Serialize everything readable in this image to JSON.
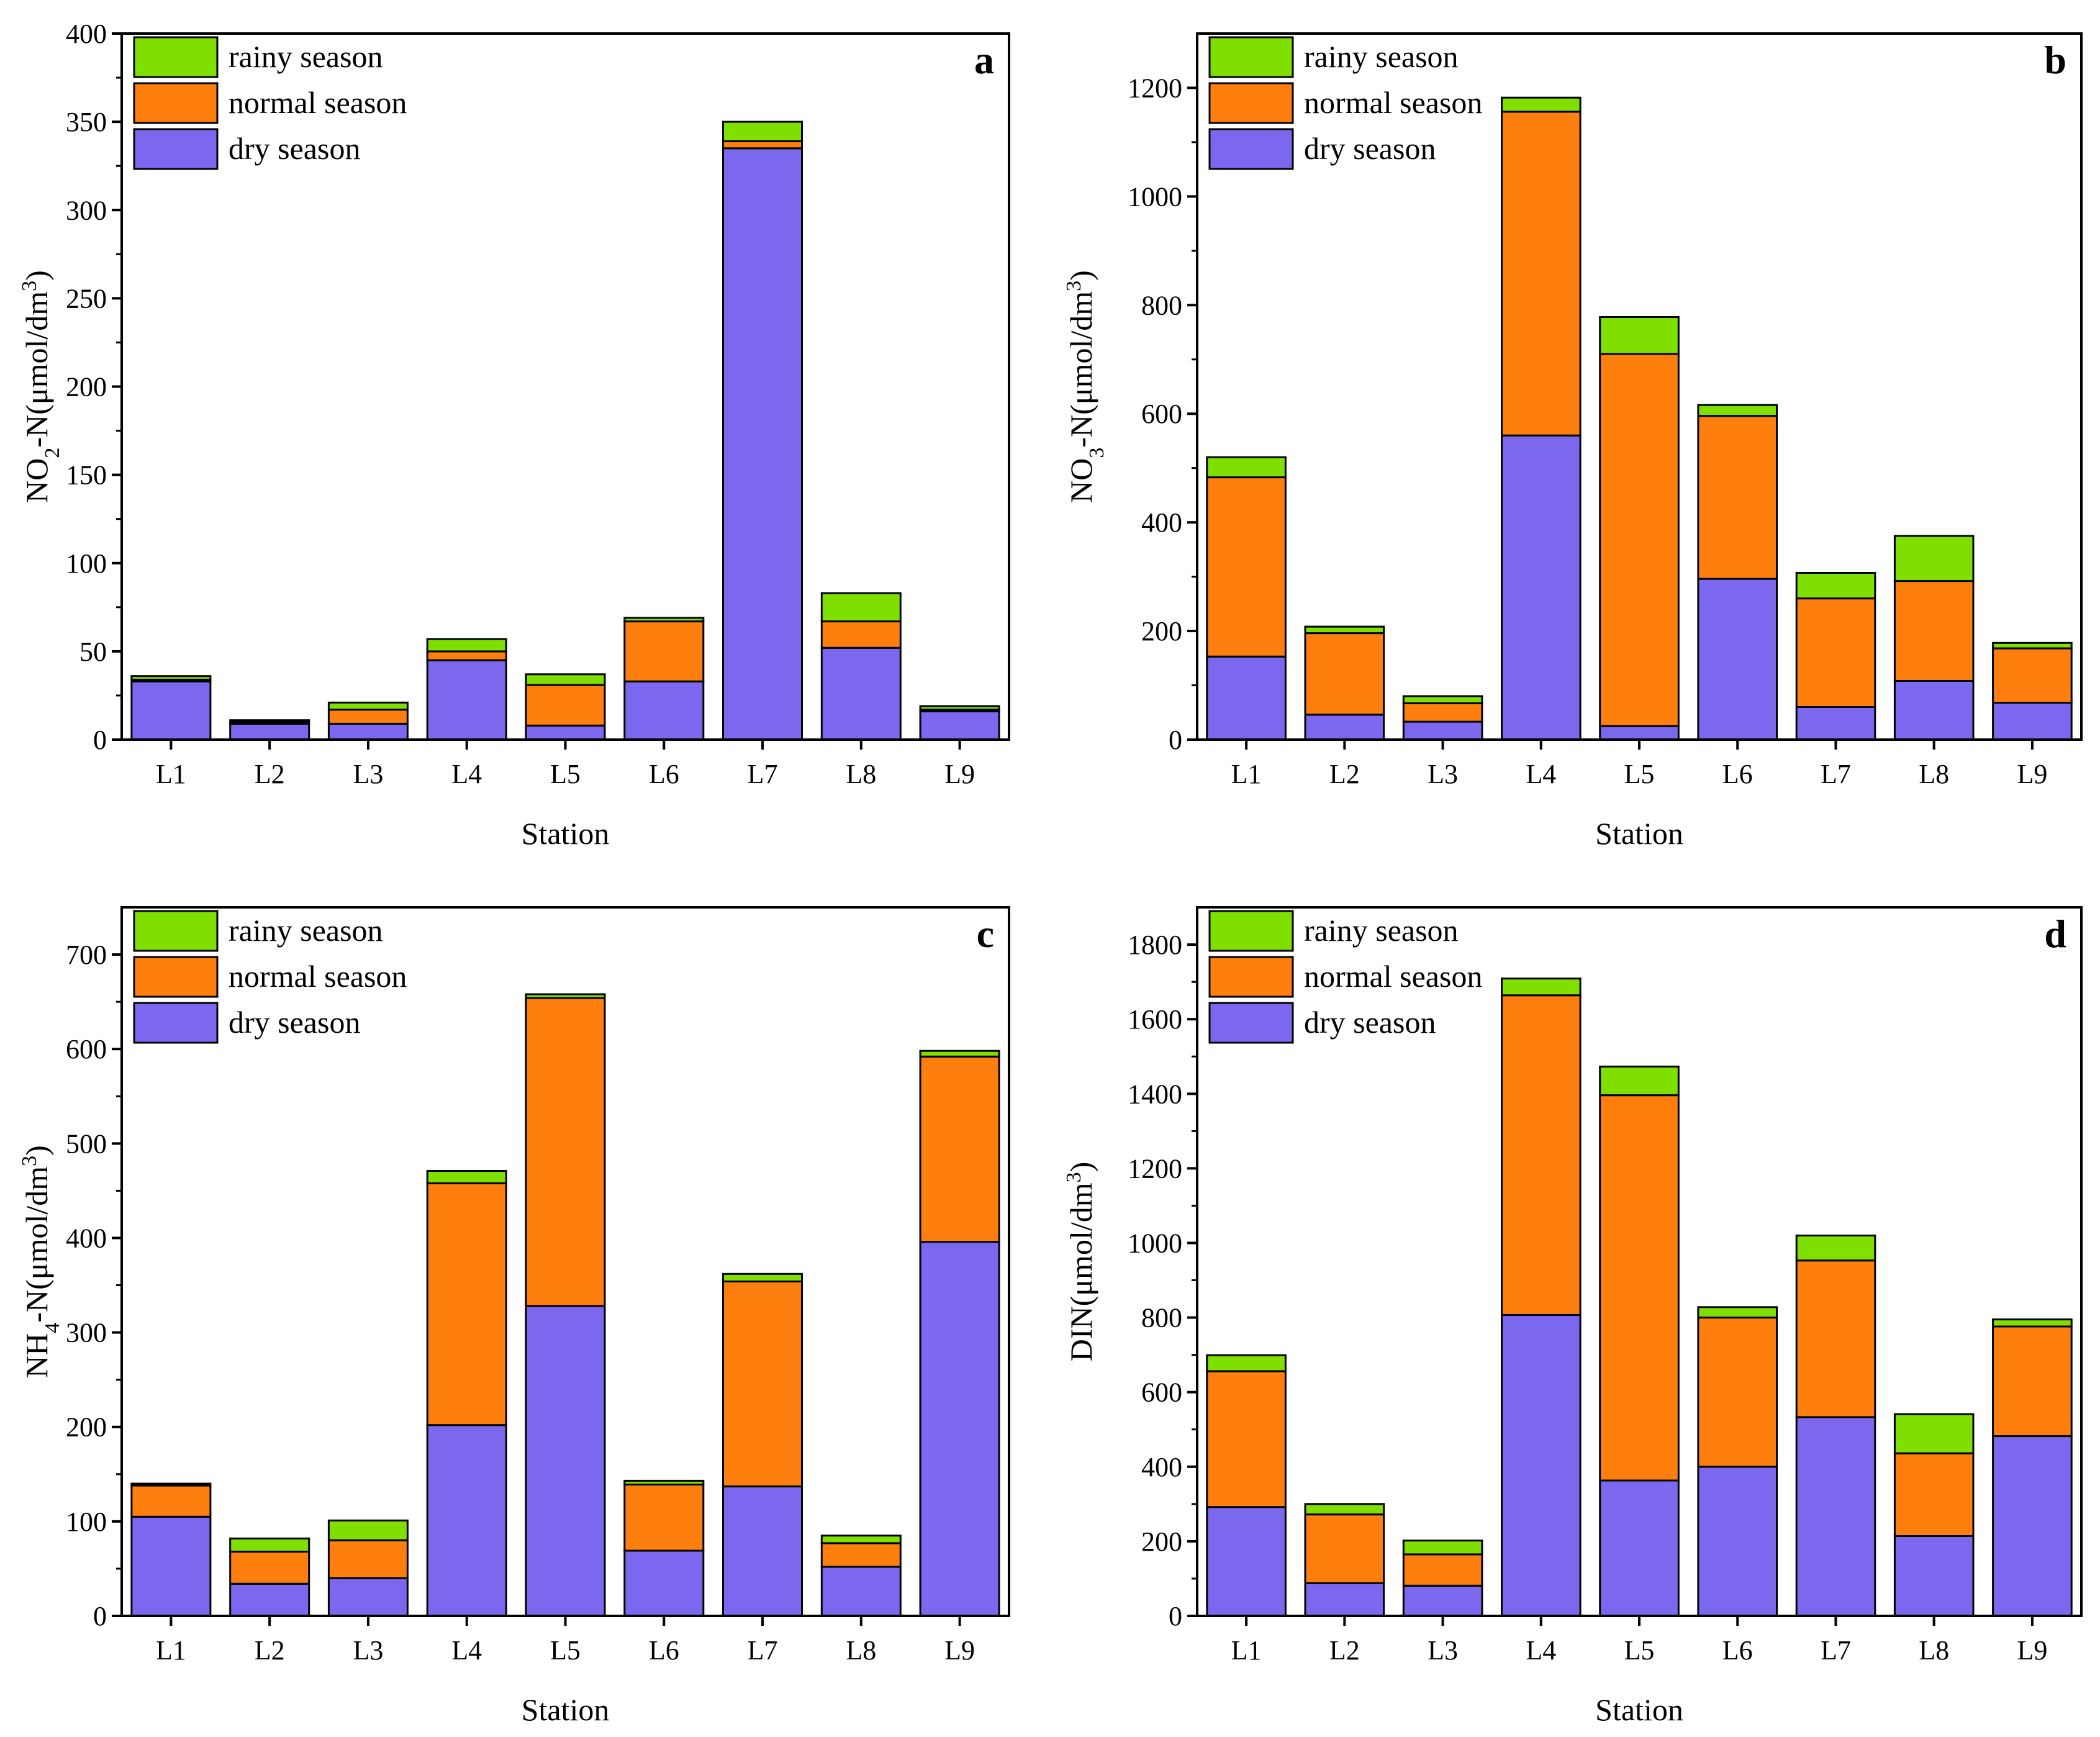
{
  "colors": {
    "dry": "#7b68ee",
    "normal": "#ff7f0e",
    "rainy": "#7fe000",
    "stroke": "#000000"
  },
  "chart_data": [
    {
      "type": "bar",
      "stacked": true,
      "panel": "a",
      "title": "",
      "xlabel": "Station",
      "ylabel": "NO2-N(μmol/dm3)",
      "ylabel_parts": {
        "main": "NO",
        "sub": "2",
        "rest": "-N(μmol/dm",
        "sup": "3",
        "close": ")"
      },
      "ylim": [
        0,
        400
      ],
      "yticks": [
        0,
        50,
        100,
        150,
        200,
        250,
        300,
        350,
        400
      ],
      "categories": [
        "L1",
        "L2",
        "L3",
        "L4",
        "L5",
        "L6",
        "L7",
        "L8",
        "L9"
      ],
      "series": [
        {
          "name": "dry season",
          "color": "#7b68ee",
          "values": [
            33,
            9,
            9,
            45,
            8,
            33,
            335,
            52,
            16
          ]
        },
        {
          "name": "normal season",
          "color": "#ff7f0e",
          "values": [
            1,
            1,
            8,
            5,
            23,
            34,
            4,
            15,
            1
          ]
        },
        {
          "name": "rainy season",
          "color": "#7fe000",
          "values": [
            2,
            1,
            4,
            7,
            6,
            2,
            11,
            16,
            2
          ]
        }
      ],
      "legend": [
        "rainy season",
        "normal season",
        "dry season"
      ],
      "legend_position": "top-left"
    },
    {
      "type": "bar",
      "stacked": true,
      "panel": "b",
      "title": "",
      "xlabel": "Station",
      "ylabel": "NO3-N(μmol/dm3)",
      "ylabel_parts": {
        "main": "NO",
        "sub": "3",
        "rest": "-N(μmol/dm",
        "sup": "3",
        "close": ")"
      },
      "ylim": [
        0,
        1300
      ],
      "yticks": [
        0,
        200,
        400,
        600,
        800,
        1000,
        1200
      ],
      "categories": [
        "L1",
        "L2",
        "L3",
        "L4",
        "L5",
        "L6",
        "L7",
        "L8",
        "L9"
      ],
      "series": [
        {
          "name": "dry season",
          "color": "#7b68ee",
          "values": [
            153,
            46,
            33,
            560,
            25,
            296,
            60,
            108,
            68
          ]
        },
        {
          "name": "normal season",
          "color": "#ff7f0e",
          "values": [
            330,
            150,
            34,
            596,
            685,
            300,
            200,
            184,
            100
          ]
        },
        {
          "name": "rainy season",
          "color": "#7fe000",
          "values": [
            37,
            12,
            13,
            26,
            68,
            20,
            47,
            83,
            10
          ]
        }
      ],
      "legend": [
        "rainy season",
        "normal season",
        "dry season"
      ],
      "legend_position": "top-left"
    },
    {
      "type": "bar",
      "stacked": true,
      "panel": "c",
      "title": "",
      "xlabel": "Station",
      "ylabel": "NH4-N(μmol/dm3)",
      "ylabel_parts": {
        "main": "NH",
        "sub": "4",
        "rest": "-N(μmol/dm",
        "sup": "3",
        "close": ")"
      },
      "ylim": [
        0,
        750
      ],
      "yticks": [
        0,
        100,
        200,
        300,
        400,
        500,
        600,
        700
      ],
      "categories": [
        "L1",
        "L2",
        "L3",
        "L4",
        "L5",
        "L6",
        "L7",
        "L8",
        "L9"
      ],
      "series": [
        {
          "name": "dry season",
          "color": "#7b68ee",
          "values": [
            105,
            34,
            40,
            202,
            328,
            69,
            137,
            52,
            396
          ]
        },
        {
          "name": "normal season",
          "color": "#ff7f0e",
          "values": [
            33,
            34,
            40,
            256,
            326,
            70,
            217,
            25,
            196
          ]
        },
        {
          "name": "rainy season",
          "color": "#7fe000",
          "values": [
            2,
            14,
            21,
            13,
            4,
            4,
            8,
            8,
            6
          ]
        }
      ],
      "legend": [
        "rainy season",
        "normal season",
        "dry season"
      ],
      "legend_position": "top-left"
    },
    {
      "type": "bar",
      "stacked": true,
      "panel": "d",
      "title": "",
      "xlabel": "Station",
      "ylabel": "DIN(μmol/dm3)",
      "ylabel_parts": {
        "main": "DIN(μmol/dm",
        "sub": "",
        "rest": "",
        "sup": "3",
        "close": ")"
      },
      "ylim": [
        0,
        1900
      ],
      "yticks": [
        0,
        200,
        400,
        600,
        800,
        1000,
        1200,
        1400,
        1600,
        1800
      ],
      "categories": [
        "L1",
        "L2",
        "L3",
        "L4",
        "L5",
        "L6",
        "L7",
        "L8",
        "L9"
      ],
      "series": [
        {
          "name": "dry season",
          "color": "#7b68ee",
          "values": [
            292,
            88,
            81,
            807,
            363,
            400,
            533,
            214,
            482
          ]
        },
        {
          "name": "normal season",
          "color": "#ff7f0e",
          "values": [
            364,
            184,
            84,
            857,
            1033,
            400,
            420,
            222,
            294
          ]
        },
        {
          "name": "rainy season",
          "color": "#7fe000",
          "values": [
            43,
            28,
            37,
            45,
            77,
            28,
            67,
            105,
            19
          ]
        }
      ],
      "legend": [
        "rainy season",
        "normal season",
        "dry season"
      ],
      "legend_position": "top-left"
    }
  ]
}
